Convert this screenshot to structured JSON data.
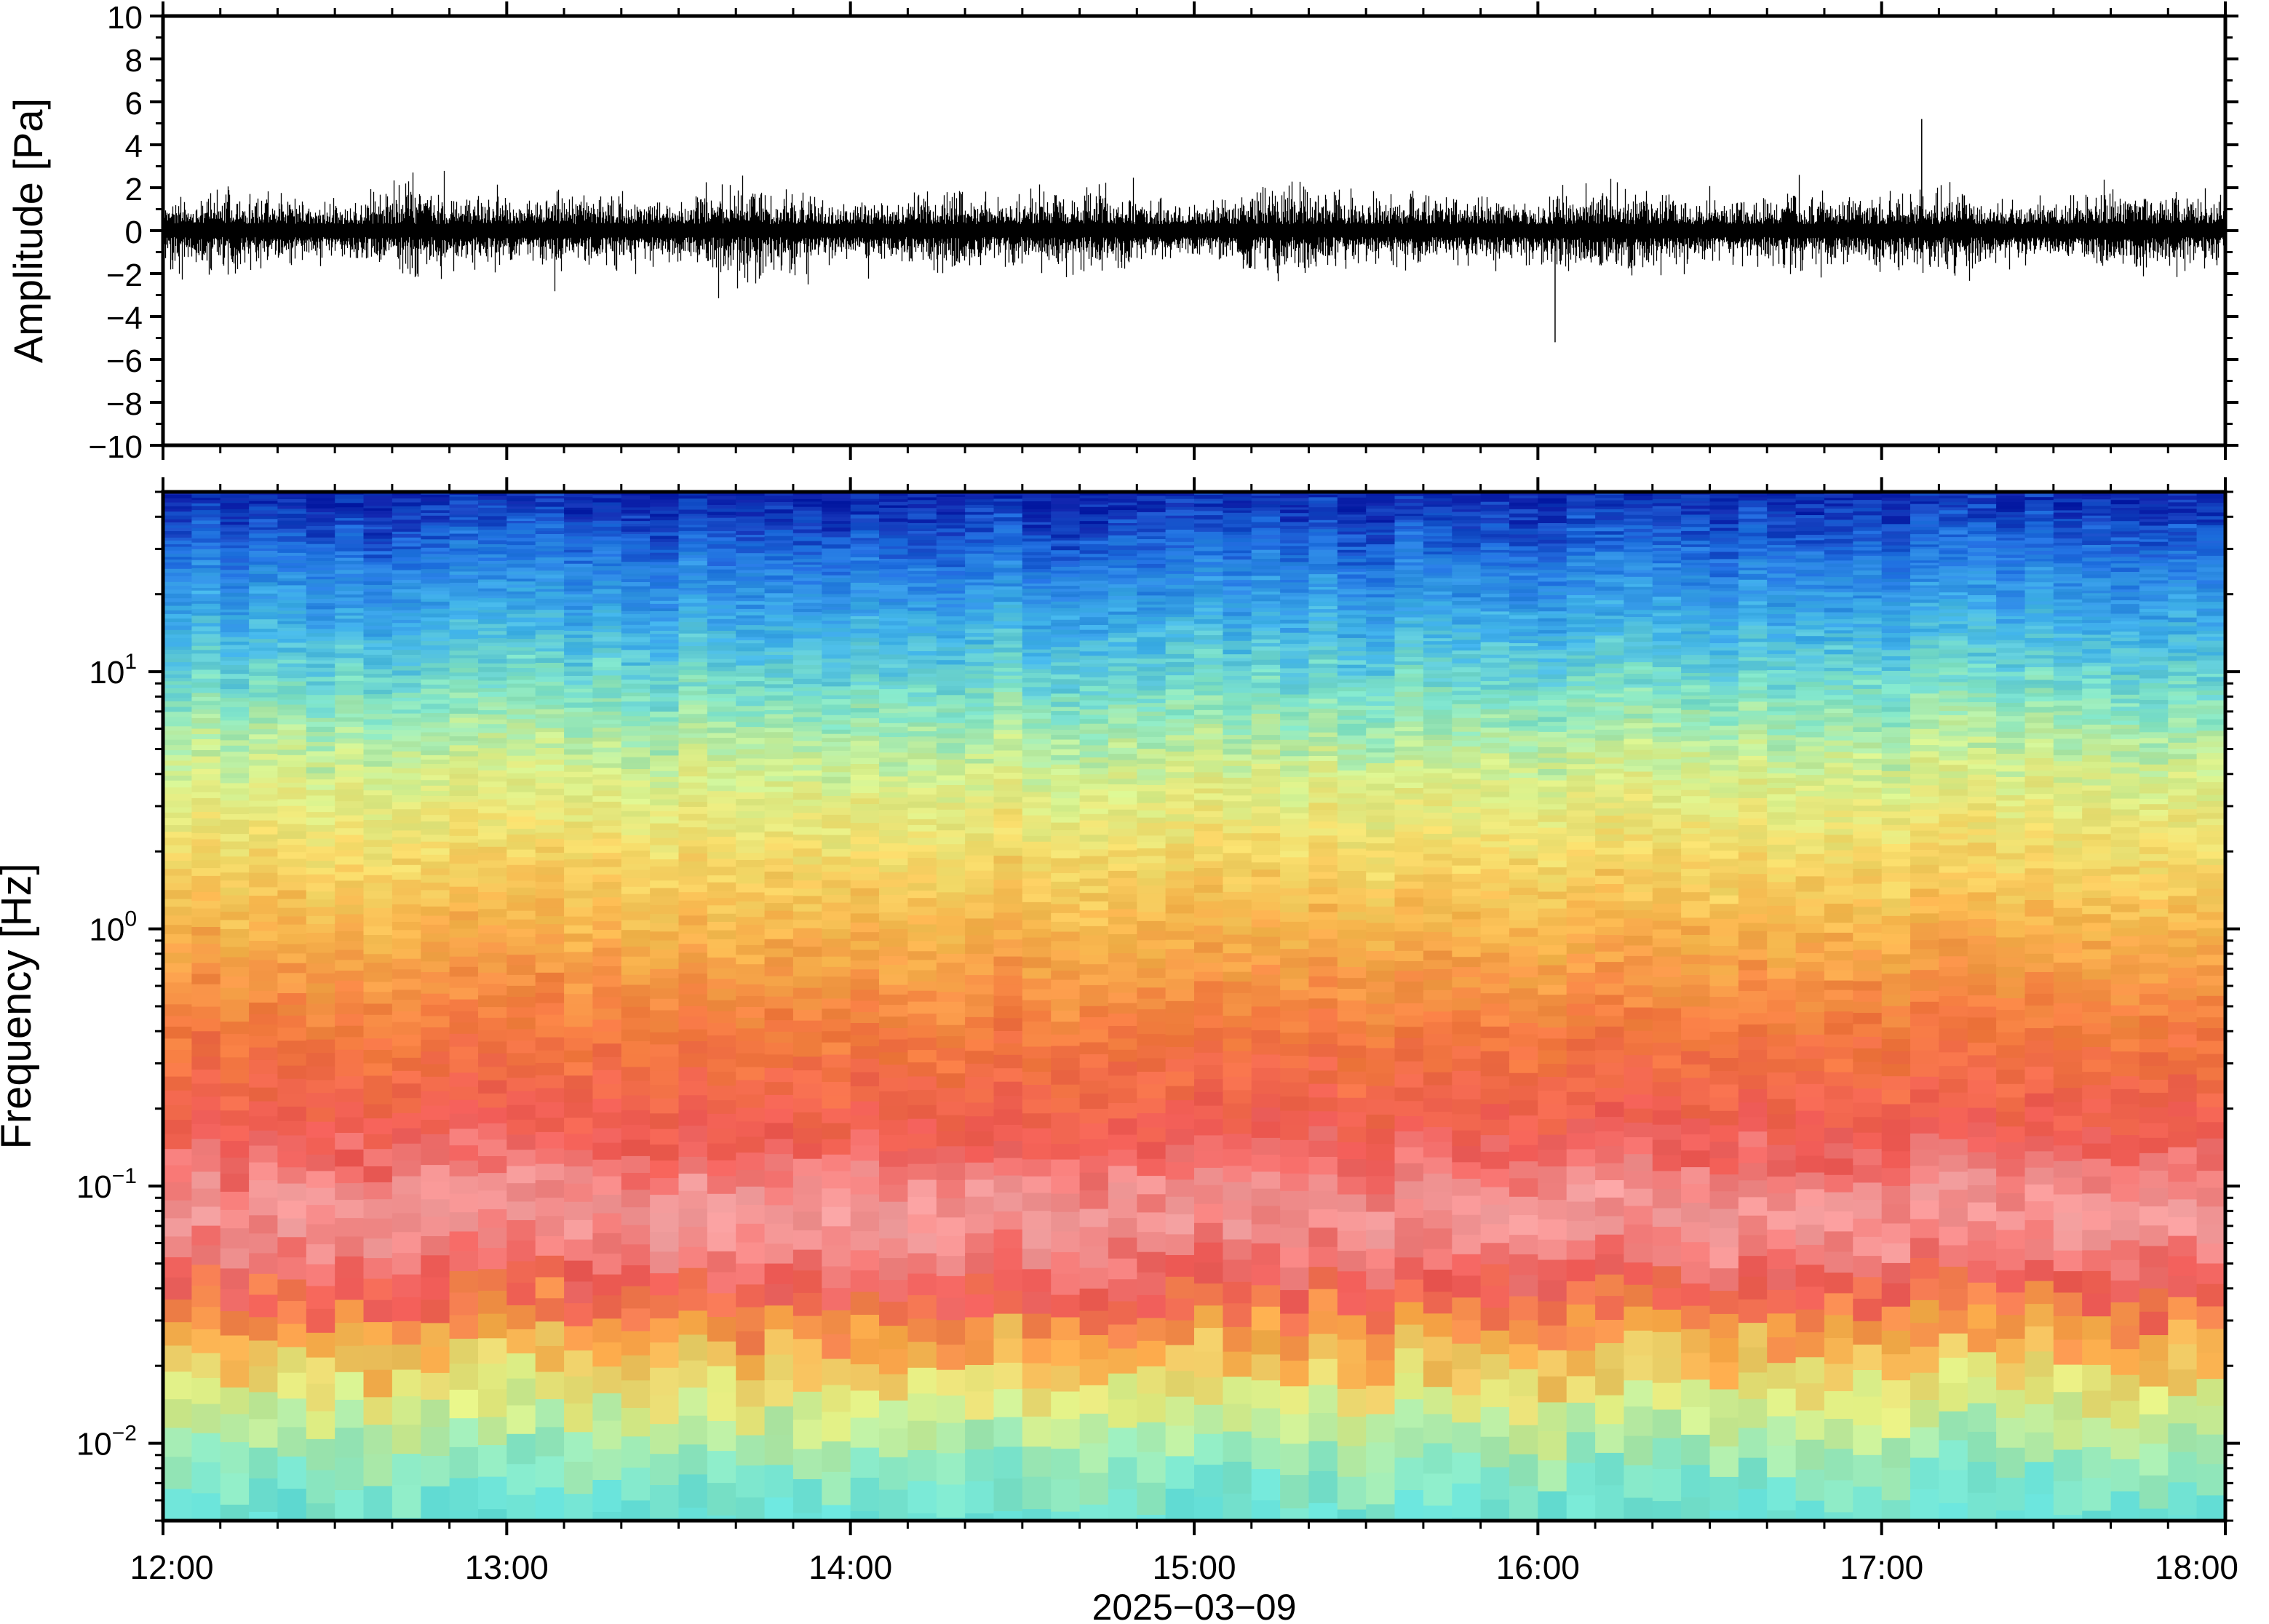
{
  "chart_data": [
    {
      "type": "line",
      "ylabel": "Amplitude [Pa]",
      "ylim": [
        -10,
        10
      ],
      "yticks": [
        "10",
        "8",
        "6",
        "4",
        "2",
        "0",
        "−2",
        "−4",
        "−6",
        "−8",
        "−10"
      ],
      "ytick_values": [
        10,
        8,
        6,
        4,
        2,
        0,
        -2,
        -4,
        -6,
        -8,
        -10
      ],
      "xlim": [
        "12:00",
        "18:00"
      ],
      "series": [
        {
          "color": "#000000",
          "envelope": {
            "typical_peak_abs": 2.5,
            "max_positive": 5.2,
            "max_positive_time": "17:07",
            "min_negative": -5.2,
            "min_negative_time": "16:03"
          }
        }
      ],
      "grid": false
    },
    {
      "type": "heatmap",
      "ylabel": "Frequency [Hz]",
      "yscale": "log",
      "ylim": [
        0.005,
        50
      ],
      "yticks": [
        {
          "base": "10",
          "exp": "−2",
          "value": 0.01
        },
        {
          "base": "10",
          "exp": "−1",
          "value": 0.1
        },
        {
          "base": "10",
          "exp": "0",
          "value": 1
        },
        {
          "base": "10",
          "exp": "1",
          "value": 10
        }
      ],
      "xlabel": "2025−03−09",
      "xticks": [
        "12:00",
        "13:00",
        "14:00",
        "15:00",
        "16:00",
        "17:00",
        "18:00"
      ],
      "xlim": [
        "12:00",
        "18:00"
      ],
      "colormap": [
        "#0a1fa8",
        "#1e6fe0",
        "#37b6e6",
        "#6ee3d6",
        "#b9f39a",
        "#f2f08a",
        "#f7c24e",
        "#f59a3e",
        "#f0684f",
        "#f08a8a",
        "#f6b3b3"
      ],
      "color_profile": [
        {
          "freq": 50,
          "color": "#0a1fa8"
        },
        {
          "freq": 30,
          "color": "#1f6fe0"
        },
        {
          "freq": 15,
          "color": "#3fb2e8"
        },
        {
          "freq": 8,
          "color": "#7fe3c6"
        },
        {
          "freq": 4,
          "color": "#d7f08c"
        },
        {
          "freq": 2,
          "color": "#f4dc6a"
        },
        {
          "freq": 1,
          "color": "#f6b44c"
        },
        {
          "freq": 0.4,
          "color": "#f37a3f"
        },
        {
          "freq": 0.15,
          "color": "#ef5a55"
        },
        {
          "freq": 0.08,
          "color": "#f4a1a1"
        },
        {
          "freq": 0.04,
          "color": "#ee5a55"
        },
        {
          "freq": 0.025,
          "color": "#f7a646"
        },
        {
          "freq": 0.015,
          "color": "#e2ee82"
        },
        {
          "freq": 0.008,
          "color": "#8ee8c0"
        },
        {
          "freq": 0.005,
          "color": "#66e0d8"
        }
      ],
      "grid": false
    }
  ]
}
